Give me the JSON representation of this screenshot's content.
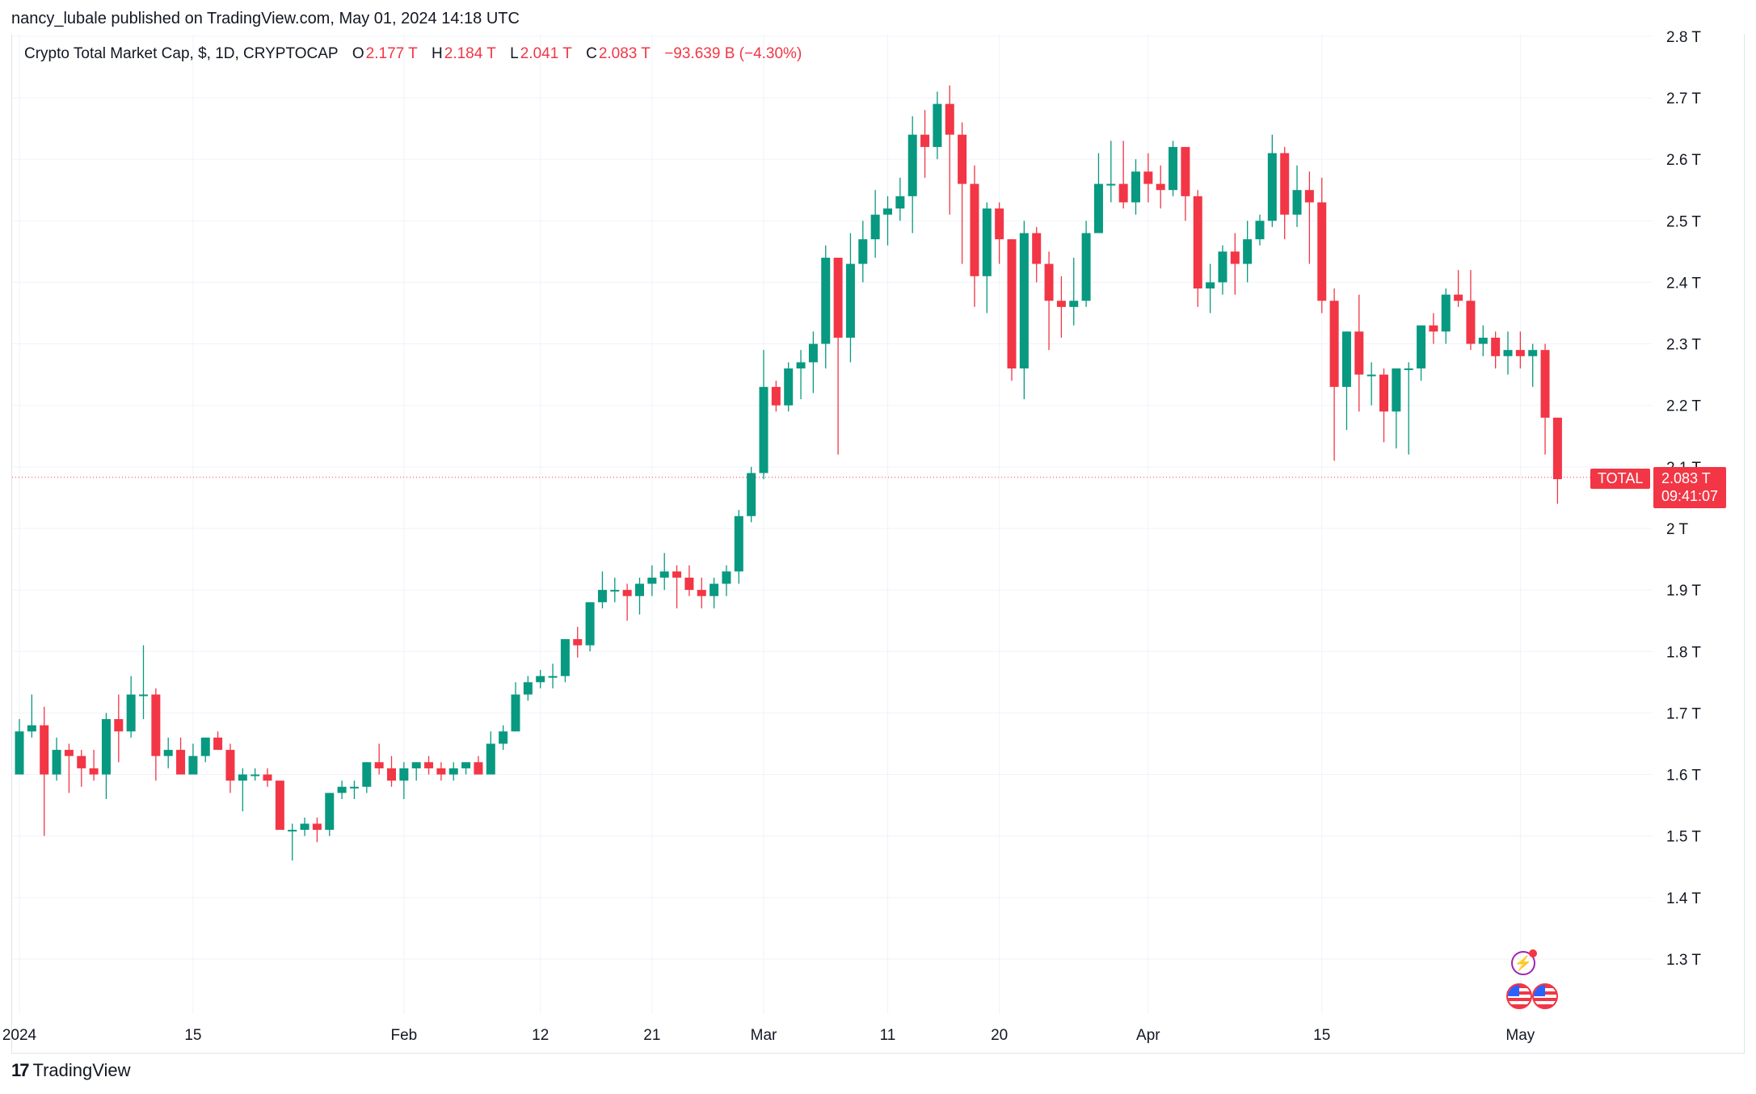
{
  "header": {
    "published": "nancy_lubale published on TradingView.com, May 01, 2024 14:18 UTC"
  },
  "legend": {
    "symbol": "Crypto Total Market Cap, $, 1D, CRYPTOCAP",
    "o_label": "O",
    "o_value": "2.177 T",
    "h_label": "H",
    "h_value": "2.184 T",
    "l_label": "L",
    "l_value": "2.041 T",
    "c_label": "C",
    "c_value": "2.083 T",
    "change": "−93.639 B (−4.30%)"
  },
  "price_scale": {
    "ticks": [
      "2.8 T",
      "2.7 T",
      "2.6 T",
      "2.5 T",
      "2.4 T",
      "2.3 T",
      "2.2 T",
      "2.1 T",
      "2 T",
      "1.9 T",
      "1.8 T",
      "1.7 T",
      "1.6 T",
      "1.5 T",
      "1.4 T",
      "1.3 T"
    ]
  },
  "last_price": {
    "symbol_tag": "TOTAL",
    "value": "2.083 T",
    "countdown": "09:41:07",
    "level": 2.083
  },
  "footer": {
    "brand": "TradingView",
    "brand_mark": "17"
  },
  "icons": {
    "bolt": "lightning-icon",
    "flags": "us-flag-icon"
  },
  "colors": {
    "up": "#089981",
    "down": "#f23645",
    "grid": "#f0f3fa"
  },
  "chart_data": {
    "type": "candlestick",
    "title": "Crypto Total Market Cap, $, 1D, CRYPTOCAP",
    "unit": "T",
    "ylim": [
      1.22,
      2.8
    ],
    "y_ticks": [
      2.8,
      2.7,
      2.6,
      2.5,
      2.4,
      2.3,
      2.2,
      2.1,
      2.0,
      1.9,
      1.8,
      1.7,
      1.6,
      1.5,
      1.4,
      1.3
    ],
    "x_tick_labels": [
      {
        "label": "2024",
        "index": 0
      },
      {
        "label": "15",
        "index": 14
      },
      {
        "label": "Feb",
        "index": 31
      },
      {
        "label": "12",
        "index": 42
      },
      {
        "label": "21",
        "index": 51
      },
      {
        "label": "Mar",
        "index": 60
      },
      {
        "label": "11",
        "index": 70
      },
      {
        "label": "20",
        "index": 79
      },
      {
        "label": "Apr",
        "index": 91
      },
      {
        "label": "15",
        "index": 105
      },
      {
        "label": "May",
        "index": 121
      }
    ],
    "grid": true,
    "candles": [
      {
        "o": 1.6,
        "h": 1.69,
        "l": 1.6,
        "c": 1.67
      },
      {
        "o": 1.67,
        "h": 1.73,
        "l": 1.66,
        "c": 1.68
      },
      {
        "o": 1.68,
        "h": 1.71,
        "l": 1.5,
        "c": 1.6
      },
      {
        "o": 1.6,
        "h": 1.66,
        "l": 1.59,
        "c": 1.64
      },
      {
        "o": 1.64,
        "h": 1.65,
        "l": 1.57,
        "c": 1.63
      },
      {
        "o": 1.63,
        "h": 1.64,
        "l": 1.58,
        "c": 1.61
      },
      {
        "o": 1.61,
        "h": 1.64,
        "l": 1.59,
        "c": 1.6
      },
      {
        "o": 1.6,
        "h": 1.7,
        "l": 1.56,
        "c": 1.69
      },
      {
        "o": 1.69,
        "h": 1.73,
        "l": 1.62,
        "c": 1.67
      },
      {
        "o": 1.67,
        "h": 1.76,
        "l": 1.66,
        "c": 1.73
      },
      {
        "o": 1.73,
        "h": 1.81,
        "l": 1.69,
        "c": 1.73
      },
      {
        "o": 1.73,
        "h": 1.74,
        "l": 1.59,
        "c": 1.63
      },
      {
        "o": 1.63,
        "h": 1.66,
        "l": 1.61,
        "c": 1.64
      },
      {
        "o": 1.64,
        "h": 1.66,
        "l": 1.6,
        "c": 1.6
      },
      {
        "o": 1.6,
        "h": 1.65,
        "l": 1.6,
        "c": 1.63
      },
      {
        "o": 1.63,
        "h": 1.66,
        "l": 1.62,
        "c": 1.66
      },
      {
        "o": 1.66,
        "h": 1.67,
        "l": 1.64,
        "c": 1.64
      },
      {
        "o": 1.64,
        "h": 1.65,
        "l": 1.57,
        "c": 1.59
      },
      {
        "o": 1.59,
        "h": 1.61,
        "l": 1.54,
        "c": 1.6
      },
      {
        "o": 1.6,
        "h": 1.61,
        "l": 1.59,
        "c": 1.6
      },
      {
        "o": 1.6,
        "h": 1.61,
        "l": 1.58,
        "c": 1.59
      },
      {
        "o": 1.59,
        "h": 1.59,
        "l": 1.51,
        "c": 1.51
      },
      {
        "o": 1.51,
        "h": 1.52,
        "l": 1.46,
        "c": 1.51
      },
      {
        "o": 1.51,
        "h": 1.53,
        "l": 1.5,
        "c": 1.52
      },
      {
        "o": 1.52,
        "h": 1.53,
        "l": 1.49,
        "c": 1.51
      },
      {
        "o": 1.51,
        "h": 1.57,
        "l": 1.5,
        "c": 1.57
      },
      {
        "o": 1.57,
        "h": 1.59,
        "l": 1.56,
        "c": 1.58
      },
      {
        "o": 1.58,
        "h": 1.59,
        "l": 1.56,
        "c": 1.58
      },
      {
        "o": 1.58,
        "h": 1.62,
        "l": 1.57,
        "c": 1.62
      },
      {
        "o": 1.62,
        "h": 1.65,
        "l": 1.6,
        "c": 1.61
      },
      {
        "o": 1.61,
        "h": 1.63,
        "l": 1.58,
        "c": 1.59
      },
      {
        "o": 1.59,
        "h": 1.62,
        "l": 1.56,
        "c": 1.61
      },
      {
        "o": 1.61,
        "h": 1.62,
        "l": 1.59,
        "c": 1.62
      },
      {
        "o": 1.62,
        "h": 1.63,
        "l": 1.6,
        "c": 1.61
      },
      {
        "o": 1.61,
        "h": 1.62,
        "l": 1.59,
        "c": 1.6
      },
      {
        "o": 1.6,
        "h": 1.62,
        "l": 1.59,
        "c": 1.61
      },
      {
        "o": 1.61,
        "h": 1.62,
        "l": 1.6,
        "c": 1.62
      },
      {
        "o": 1.62,
        "h": 1.63,
        "l": 1.6,
        "c": 1.6
      },
      {
        "o": 1.6,
        "h": 1.67,
        "l": 1.6,
        "c": 1.65
      },
      {
        "o": 1.65,
        "h": 1.68,
        "l": 1.64,
        "c": 1.67
      },
      {
        "o": 1.67,
        "h": 1.75,
        "l": 1.67,
        "c": 1.73
      },
      {
        "o": 1.73,
        "h": 1.76,
        "l": 1.72,
        "c": 1.75
      },
      {
        "o": 1.75,
        "h": 1.77,
        "l": 1.74,
        "c": 1.76
      },
      {
        "o": 1.76,
        "h": 1.78,
        "l": 1.74,
        "c": 1.76
      },
      {
        "o": 1.76,
        "h": 1.82,
        "l": 1.75,
        "c": 1.82
      },
      {
        "o": 1.82,
        "h": 1.84,
        "l": 1.79,
        "c": 1.81
      },
      {
        "o": 1.81,
        "h": 1.88,
        "l": 1.8,
        "c": 1.88
      },
      {
        "o": 1.88,
        "h": 1.93,
        "l": 1.87,
        "c": 1.9
      },
      {
        "o": 1.9,
        "h": 1.92,
        "l": 1.88,
        "c": 1.9
      },
      {
        "o": 1.9,
        "h": 1.91,
        "l": 1.85,
        "c": 1.89
      },
      {
        "o": 1.89,
        "h": 1.92,
        "l": 1.86,
        "c": 1.91
      },
      {
        "o": 1.91,
        "h": 1.94,
        "l": 1.89,
        "c": 1.92
      },
      {
        "o": 1.92,
        "h": 1.96,
        "l": 1.9,
        "c": 1.93
      },
      {
        "o": 1.93,
        "h": 1.94,
        "l": 1.87,
        "c": 1.92
      },
      {
        "o": 1.92,
        "h": 1.94,
        "l": 1.89,
        "c": 1.9
      },
      {
        "o": 1.9,
        "h": 1.92,
        "l": 1.87,
        "c": 1.89
      },
      {
        "o": 1.89,
        "h": 1.92,
        "l": 1.87,
        "c": 1.91
      },
      {
        "o": 1.91,
        "h": 1.94,
        "l": 1.89,
        "c": 1.93
      },
      {
        "o": 1.93,
        "h": 2.03,
        "l": 1.91,
        "c": 2.02
      },
      {
        "o": 2.02,
        "h": 2.1,
        "l": 2.01,
        "c": 2.09
      },
      {
        "o": 2.09,
        "h": 2.29,
        "l": 2.08,
        "c": 2.23
      },
      {
        "o": 2.23,
        "h": 2.24,
        "l": 2.19,
        "c": 2.2
      },
      {
        "o": 2.2,
        "h": 2.27,
        "l": 2.19,
        "c": 2.26
      },
      {
        "o": 2.26,
        "h": 2.29,
        "l": 2.21,
        "c": 2.27
      },
      {
        "o": 2.27,
        "h": 2.32,
        "l": 2.22,
        "c": 2.3
      },
      {
        "o": 2.3,
        "h": 2.46,
        "l": 2.26,
        "c": 2.44
      },
      {
        "o": 2.44,
        "h": 2.44,
        "l": 2.12,
        "c": 2.31
      },
      {
        "o": 2.31,
        "h": 2.48,
        "l": 2.27,
        "c": 2.43
      },
      {
        "o": 2.43,
        "h": 2.5,
        "l": 2.4,
        "c": 2.47
      },
      {
        "o": 2.47,
        "h": 2.55,
        "l": 2.44,
        "c": 2.51
      },
      {
        "o": 2.51,
        "h": 2.54,
        "l": 2.46,
        "c": 2.52
      },
      {
        "o": 2.52,
        "h": 2.57,
        "l": 2.5,
        "c": 2.54
      },
      {
        "o": 2.54,
        "h": 2.67,
        "l": 2.48,
        "c": 2.64
      },
      {
        "o": 2.64,
        "h": 2.68,
        "l": 2.57,
        "c": 2.62
      },
      {
        "o": 2.62,
        "h": 2.71,
        "l": 2.6,
        "c": 2.69
      },
      {
        "o": 2.69,
        "h": 2.72,
        "l": 2.51,
        "c": 2.64
      },
      {
        "o": 2.64,
        "h": 2.66,
        "l": 2.43,
        "c": 2.56
      },
      {
        "o": 2.56,
        "h": 2.59,
        "l": 2.36,
        "c": 2.41
      },
      {
        "o": 2.41,
        "h": 2.53,
        "l": 2.35,
        "c": 2.52
      },
      {
        "o": 2.52,
        "h": 2.53,
        "l": 2.43,
        "c": 2.47
      },
      {
        "o": 2.47,
        "h": 2.47,
        "l": 2.24,
        "c": 2.26
      },
      {
        "o": 2.26,
        "h": 2.5,
        "l": 2.21,
        "c": 2.48
      },
      {
        "o": 2.48,
        "h": 2.49,
        "l": 2.4,
        "c": 2.43
      },
      {
        "o": 2.43,
        "h": 2.45,
        "l": 2.29,
        "c": 2.37
      },
      {
        "o": 2.37,
        "h": 2.41,
        "l": 2.31,
        "c": 2.36
      },
      {
        "o": 2.36,
        "h": 2.44,
        "l": 2.33,
        "c": 2.37
      },
      {
        "o": 2.37,
        "h": 2.5,
        "l": 2.36,
        "c": 2.48
      },
      {
        "o": 2.48,
        "h": 2.61,
        "l": 2.48,
        "c": 2.56
      },
      {
        "o": 2.56,
        "h": 2.63,
        "l": 2.53,
        "c": 2.56
      },
      {
        "o": 2.56,
        "h": 2.63,
        "l": 2.52,
        "c": 2.53
      },
      {
        "o": 2.53,
        "h": 2.6,
        "l": 2.51,
        "c": 2.58
      },
      {
        "o": 2.58,
        "h": 2.61,
        "l": 2.53,
        "c": 2.56
      },
      {
        "o": 2.56,
        "h": 2.59,
        "l": 2.52,
        "c": 2.55
      },
      {
        "o": 2.55,
        "h": 2.63,
        "l": 2.54,
        "c": 2.62
      },
      {
        "o": 2.62,
        "h": 2.62,
        "l": 2.5,
        "c": 2.54
      },
      {
        "o": 2.54,
        "h": 2.55,
        "l": 2.36,
        "c": 2.39
      },
      {
        "o": 2.39,
        "h": 2.43,
        "l": 2.35,
        "c": 2.4
      },
      {
        "o": 2.4,
        "h": 2.46,
        "l": 2.38,
        "c": 2.45
      },
      {
        "o": 2.45,
        "h": 2.48,
        "l": 2.38,
        "c": 2.43
      },
      {
        "o": 2.43,
        "h": 2.5,
        "l": 2.4,
        "c": 2.47
      },
      {
        "o": 2.47,
        "h": 2.51,
        "l": 2.46,
        "c": 2.5
      },
      {
        "o": 2.5,
        "h": 2.64,
        "l": 2.49,
        "c": 2.61
      },
      {
        "o": 2.61,
        "h": 2.62,
        "l": 2.47,
        "c": 2.51
      },
      {
        "o": 2.51,
        "h": 2.59,
        "l": 2.49,
        "c": 2.55
      },
      {
        "o": 2.55,
        "h": 2.58,
        "l": 2.43,
        "c": 2.53
      },
      {
        "o": 2.53,
        "h": 2.57,
        "l": 2.35,
        "c": 2.37
      },
      {
        "o": 2.37,
        "h": 2.39,
        "l": 2.11,
        "c": 2.23
      },
      {
        "o": 2.23,
        "h": 2.32,
        "l": 2.16,
        "c": 2.32
      },
      {
        "o": 2.32,
        "h": 2.38,
        "l": 2.19,
        "c": 2.25
      },
      {
        "o": 2.25,
        "h": 2.27,
        "l": 2.2,
        "c": 2.25
      },
      {
        "o": 2.25,
        "h": 2.26,
        "l": 2.14,
        "c": 2.19
      },
      {
        "o": 2.19,
        "h": 2.26,
        "l": 2.13,
        "c": 2.26
      },
      {
        "o": 2.26,
        "h": 2.27,
        "l": 2.12,
        "c": 2.26
      },
      {
        "o": 2.26,
        "h": 2.33,
        "l": 2.24,
        "c": 2.33
      },
      {
        "o": 2.33,
        "h": 2.35,
        "l": 2.3,
        "c": 2.32
      },
      {
        "o": 2.32,
        "h": 2.39,
        "l": 2.3,
        "c": 2.38
      },
      {
        "o": 2.38,
        "h": 2.42,
        "l": 2.36,
        "c": 2.37
      },
      {
        "o": 2.37,
        "h": 2.42,
        "l": 2.29,
        "c": 2.3
      },
      {
        "o": 2.3,
        "h": 2.33,
        "l": 2.28,
        "c": 2.31
      },
      {
        "o": 2.31,
        "h": 2.32,
        "l": 2.26,
        "c": 2.28
      },
      {
        "o": 2.28,
        "h": 2.32,
        "l": 2.25,
        "c": 2.29
      },
      {
        "o": 2.29,
        "h": 2.32,
        "l": 2.26,
        "c": 2.28
      },
      {
        "o": 2.28,
        "h": 2.3,
        "l": 2.23,
        "c": 2.29
      },
      {
        "o": 2.29,
        "h": 2.3,
        "l": 2.12,
        "c": 2.18
      },
      {
        "o": 2.18,
        "h": 2.18,
        "l": 2.04,
        "c": 2.08
      }
    ]
  }
}
